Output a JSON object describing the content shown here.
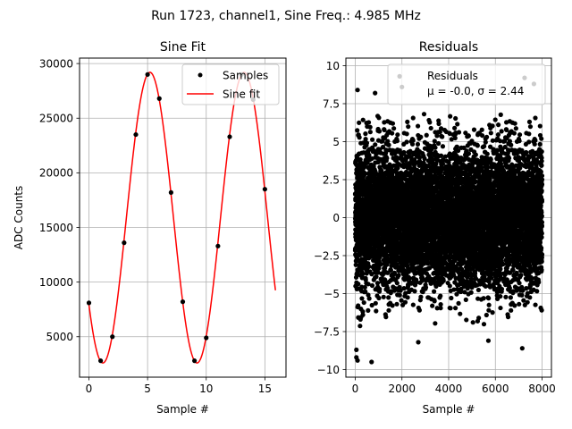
{
  "figure": {
    "suptitle": "Run 1723, channel1, Sine Freq.: 4.985 MHz"
  },
  "chart_data": [
    {
      "type": "line",
      "title": "Sine Fit",
      "xlabel": "Sample #",
      "ylabel": "ADC Counts",
      "xlim": [
        -0.8,
        16.8
      ],
      "ylim": [
        1300,
        30500
      ],
      "xticks": [
        0,
        5,
        10,
        15
      ],
      "yticks": [
        5000,
        10000,
        15000,
        20000,
        25000,
        30000
      ],
      "grid": true,
      "legend_position": "top-right",
      "series": [
        {
          "name": "Samples",
          "style": "points",
          "color": "#000000",
          "x": [
            0,
            1,
            2,
            3,
            4,
            5,
            6,
            7,
            8,
            9,
            10,
            11,
            12,
            13,
            14,
            15
          ],
          "y": [
            8100,
            2800,
            5000,
            13600,
            23500,
            29000,
            26800,
            18200,
            8200,
            2800,
            4900,
            13300,
            23300,
            29000,
            26700,
            18500
          ]
        },
        {
          "name": "Sine fit",
          "style": "line",
          "color": "#ff0000",
          "model": {
            "offset": 15900,
            "amplitude": 13300,
            "period": 8.025,
            "peak_x": 5.2,
            "x_start": 0,
            "x_end": 15.9
          }
        }
      ]
    },
    {
      "type": "scatter",
      "title": "Residuals",
      "xlabel": "Sample #",
      "ylabel": "",
      "xlim": [
        -400,
        8400
      ],
      "ylim": [
        -10.5,
        10.5
      ],
      "xticks": [
        0,
        2000,
        4000,
        6000,
        8000
      ],
      "yticks": [
        -10.0,
        -7.5,
        -5.0,
        -2.5,
        0.0,
        2.5,
        5.0,
        7.5,
        10.0
      ],
      "grid": true,
      "legend_position": "top-right",
      "legend": {
        "label": "Residuals",
        "stats": "μ = -0.0, σ = 2.44"
      },
      "series": [
        {
          "name": "Residuals",
          "color": "#000000",
          "count": 8000,
          "mean": 0.0,
          "sigma": 2.44,
          "x_range": [
            0,
            8000
          ],
          "outliers": [
            {
              "x": 50,
              "y": -9.2
            },
            {
              "x": 100,
              "y": -9.4
            },
            {
              "x": 700,
              "y": -9.5
            },
            {
              "x": 100,
              "y": 8.4
            },
            {
              "x": 850,
              "y": 8.2
            },
            {
              "x": 2000,
              "y": 8.6
            },
            {
              "x": 1900,
              "y": 9.3
            },
            {
              "x": 7250,
              "y": 9.2
            },
            {
              "x": 7650,
              "y": 8.8
            },
            {
              "x": 7150,
              "y": -8.6
            },
            {
              "x": 2700,
              "y": -8.2
            },
            {
              "x": 5700,
              "y": -8.1
            },
            {
              "x": 50,
              "y": -8.7
            }
          ]
        }
      ]
    }
  ]
}
